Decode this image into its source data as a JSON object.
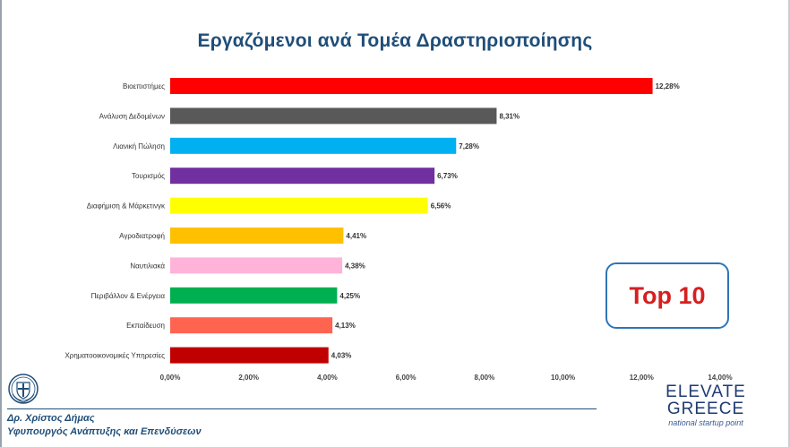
{
  "slide": {
    "title": "Εργαζόμενοι ανά Τομέα Δραστηριοποίησης",
    "callout": "Top 10",
    "author": "Δρ. Χρίστος Δήμας",
    "role": "Υφυπουργός Ανάπτυξης και Επενδύσεων",
    "logo_line1": "ELEVATE",
    "logo_line2": "GREECE",
    "logo_line3": "national startup point"
  },
  "chart_data": {
    "type": "bar",
    "orientation": "horizontal",
    "title": "Εργαζόμενοι ανά Τομέα Δραστηριοποίησης",
    "categories": [
      "Βιοεπιστήμες",
      "Ανάλυση Δεδομένων",
      "Λιανική Πώληση",
      "Τουρισμός",
      "Διαφήμιση & Μάρκετινγκ",
      "Αγροδιατροφή",
      "Ναυτιλιακά",
      "Περιβάλλον & Ενέργεια",
      "Εκπαίδευση",
      "Χρηματοοικονομικές Υπηρεσίες"
    ],
    "values": [
      12.28,
      8.31,
      7.28,
      6.73,
      6.56,
      4.41,
      4.38,
      4.25,
      4.13,
      4.03
    ],
    "value_labels": [
      "12,28%",
      "8,31%",
      "7,28%",
      "6,73%",
      "6,56%",
      "4,41%",
      "4,38%",
      "4,25%",
      "4,13%",
      "4,03%"
    ],
    "colors": [
      "#ff0000",
      "#595959",
      "#00b0f0",
      "#7030a0",
      "#ffff00",
      "#ffc000",
      "#ffb3d9",
      "#00b050",
      "#ff6450",
      "#c00000"
    ],
    "xlim": [
      0,
      14
    ],
    "xticks": [
      0,
      2,
      4,
      6,
      8,
      10,
      12,
      14
    ],
    "xtick_labels": [
      "0,00%",
      "2,00%",
      "4,00%",
      "6,00%",
      "8,00%",
      "10,00%",
      "12,00%",
      "14,00%"
    ],
    "grid": false,
    "legend": "none"
  }
}
